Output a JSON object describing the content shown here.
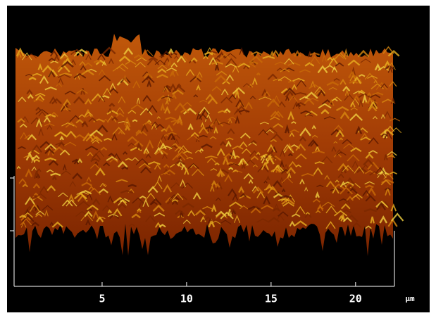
{
  "axis": {
    "xlim": [
      0,
      22.3
    ],
    "xticks": [
      5,
      10,
      15,
      20
    ],
    "unit": "μm"
  }
}
